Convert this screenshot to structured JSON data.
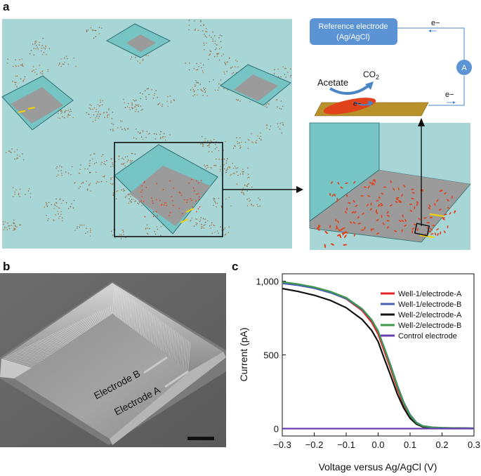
{
  "panels": {
    "a": {
      "letter": "a",
      "reference_electrode": {
        "line1": "Reference electrode",
        "line2": "(Ag/AgCl)"
      },
      "electron_label": "e−",
      "ammeter_label": "A",
      "acetate_label": "Acetate",
      "co2_label": "CO",
      "co2_sub": "2",
      "colors": {
        "background": "#a8d5d6",
        "well_floor": "#9b9b9b",
        "wall": "#76c4c4",
        "reference_box": "#5b93d4",
        "electrode_bar": "#b8912a",
        "bacteria": "#e0421b",
        "electrode_marks": "#f2d200"
      }
    },
    "b": {
      "letter": "b",
      "electrode_b_label": "Electrode B",
      "electrode_a_label": "Electrode A"
    },
    "c": {
      "letter": "c"
    }
  },
  "chart_data": {
    "type": "line",
    "xlabel": "Voltage versus Ag/AgCl (V)",
    "ylabel": "Current (pA)",
    "xlim": [
      -0.3,
      0.3
    ],
    "ylim": [
      -50,
      1050
    ],
    "x_ticks": [
      -0.3,
      -0.2,
      -0.1,
      0,
      0.1,
      0.2,
      0.3
    ],
    "x_tick_labels": [
      "−0.3",
      "−0.2",
      "−0.1",
      "0.0",
      "0.1",
      "0.2",
      "0.3"
    ],
    "y_ticks": [
      0,
      500,
      1000
    ],
    "y_tick_labels": [
      "0",
      "500",
      "1,000"
    ],
    "legend_position": "top-right",
    "x": [
      -0.3,
      -0.25,
      -0.2,
      -0.15,
      -0.1,
      -0.05,
      -0.02,
      0.0,
      0.02,
      0.04,
      0.06,
      0.08,
      0.1,
      0.12,
      0.14,
      0.17,
      0.2,
      0.25,
      0.3
    ],
    "series": [
      {
        "name": "Well-1/electrode-A",
        "color": "#e3242b",
        "values": [
          990,
          975,
          955,
          925,
          880,
          800,
          720,
          640,
          520,
          400,
          270,
          160,
          80,
          35,
          15,
          8,
          5,
          3,
          2
        ]
      },
      {
        "name": "Well-1/electrode-B",
        "color": "#4a5fb5",
        "values": [
          985,
          972,
          952,
          922,
          882,
          808,
          735,
          660,
          545,
          425,
          295,
          180,
          95,
          42,
          18,
          9,
          6,
          4,
          3
        ]
      },
      {
        "name": "Well-2/electrode-A",
        "color": "#111111",
        "values": [
          950,
          930,
          905,
          870,
          820,
          740,
          665,
          590,
          470,
          355,
          235,
          140,
          70,
          30,
          12,
          6,
          4,
          3,
          2
        ]
      },
      {
        "name": "Well-2/electrode-B",
        "color": "#3d9a4a",
        "values": [
          995,
          980,
          960,
          930,
          888,
          812,
          738,
          662,
          540,
          418,
          288,
          172,
          88,
          38,
          16,
          8,
          5,
          3,
          2
        ]
      },
      {
        "name": "Control electrode",
        "color": "#6a3fb0",
        "values": [
          0,
          0,
          0,
          0,
          0,
          0,
          0,
          0,
          0,
          0,
          0,
          0,
          0,
          0,
          0,
          0,
          0,
          0,
          0
        ]
      }
    ]
  }
}
